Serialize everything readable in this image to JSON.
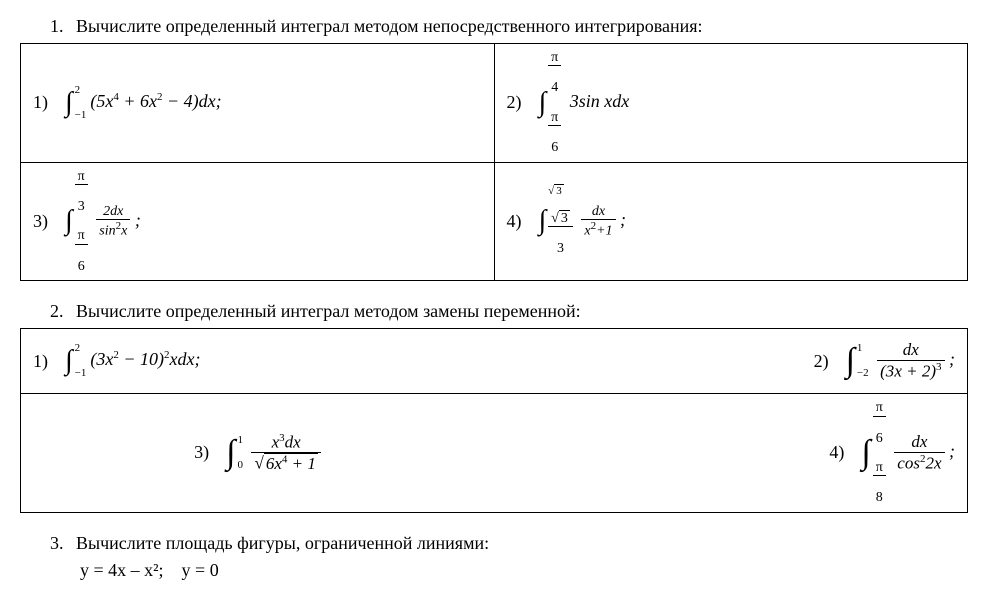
{
  "q1": {
    "num": "1.",
    "text": "Вычислите определенный интеграл методом непосредственного интегрирования:",
    "rows": [
      {
        "left_idx": "1)",
        "left_expr": "int_m1_2_5x4_6x2_m4",
        "right_idx": "2)",
        "right_expr": "int_pi6_pi4_3sinx"
      },
      {
        "left_idx": "3)",
        "left_expr": "int_pi6_pi3_2dx_sin2x",
        "right_idx": "4)",
        "right_expr": "int_r3o3_r3_dx_x2p1"
      }
    ]
  },
  "q2": {
    "num": "2.",
    "text": "Вычислите определенный интеграл методом замены переменной:",
    "rows": [
      {
        "left_idx": "1)",
        "left_expr": "int_m1_2_3x2m10_sq_x",
        "right_idx": "2)",
        "right_expr": "int_m2_1_dx_3xp2_cub"
      },
      {
        "left_idx": "3)",
        "left_expr": "int_0_1_x3_sqrt6x4p1",
        "right_idx": "4)",
        "right_expr": "int_pi8_pi6_dx_cos2_2x"
      }
    ]
  },
  "q3": {
    "num": "3.",
    "text": "Вычислите площадь фигуры, ограниченной линиями:",
    "lines": "y = 4x – x²;    y = 0"
  },
  "table_style": {
    "border_color": "#000000",
    "border_width": 1,
    "col_widths_pct": [
      50,
      50
    ]
  },
  "typography": {
    "body_font": "Times New Roman",
    "math_font": "Cambria Math",
    "body_size_pt": 14,
    "math_style": "italic"
  },
  "colors": {
    "text": "#000000",
    "background": "#ffffff"
  }
}
